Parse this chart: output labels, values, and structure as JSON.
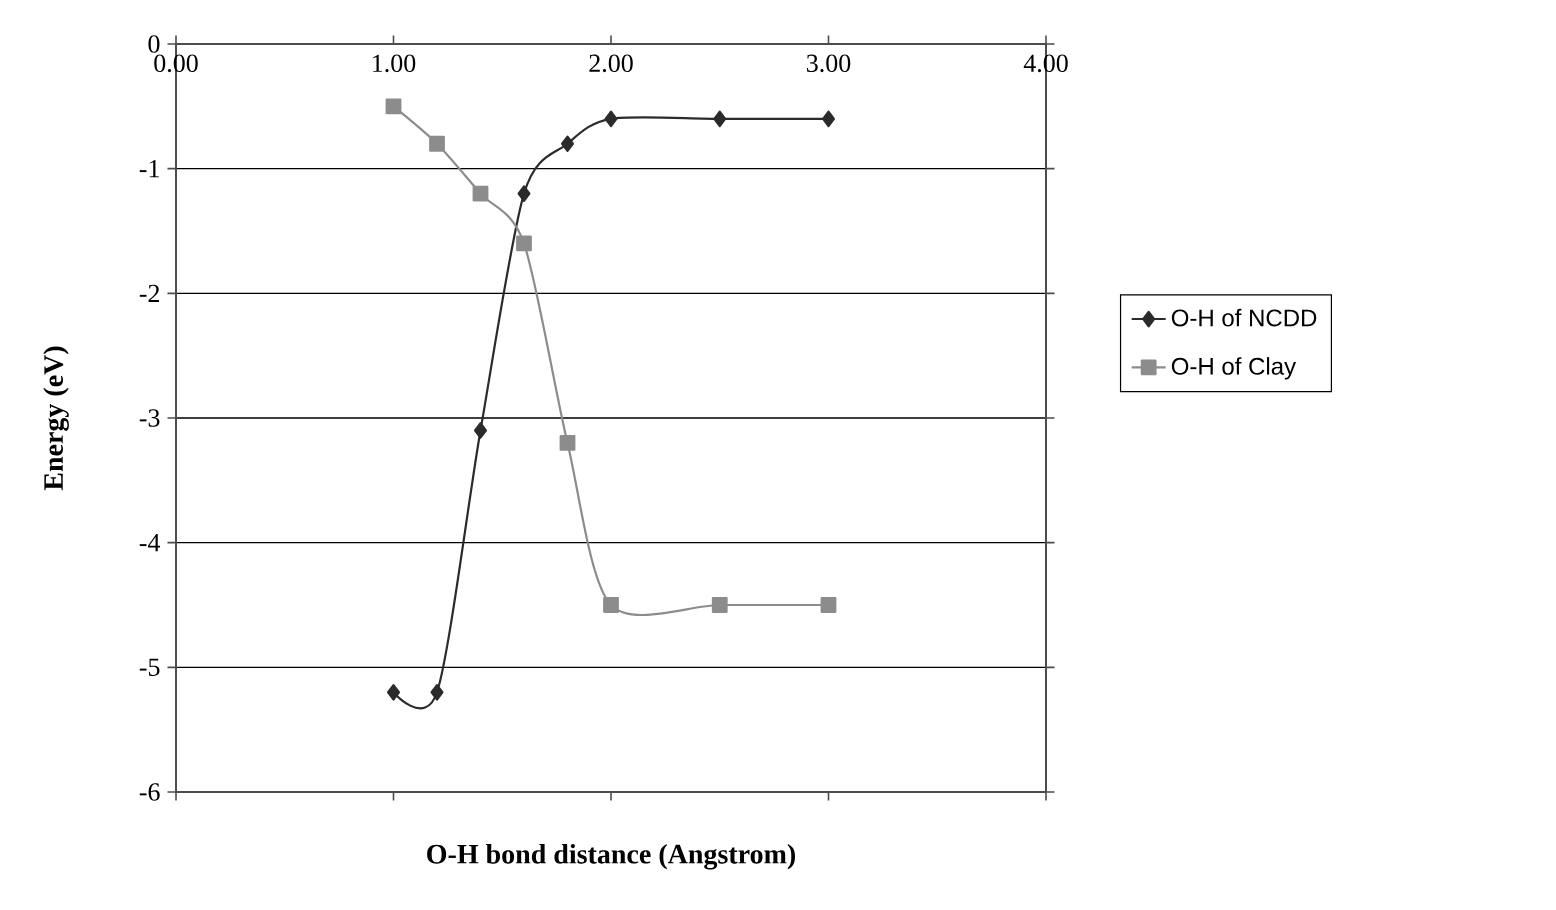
{
  "chart_data": {
    "type": "line",
    "xlabel": "O-H bond distance (Angstrom)",
    "ylabel": "Energy (eV)",
    "xlim": [
      0,
      4
    ],
    "xticks": [
      {
        "value": 0,
        "label": "0.00"
      },
      {
        "value": 1,
        "label": "1.00"
      },
      {
        "value": 2,
        "label": "2.00"
      },
      {
        "value": 3,
        "label": "3.00"
      },
      {
        "value": 4,
        "label": "4.00"
      }
    ],
    "ylim": [
      -6,
      0
    ],
    "yticks": [
      -6,
      -5,
      -4,
      -3,
      -2,
      -1,
      0
    ],
    "grid": "y",
    "legend": "right",
    "series": [
      {
        "name": "O-H of NCDD",
        "color": "#2b2b2b",
        "marker": "diamond",
        "x": [
          1.0,
          1.2,
          1.4,
          1.6,
          1.8,
          2.0,
          2.5,
          3.0
        ],
        "values": [
          -5.2,
          -5.2,
          -3.1,
          -1.2,
          -0.8,
          -0.6,
          -0.6,
          -0.6
        ]
      },
      {
        "name": "O-H of Clay",
        "color": "#8c8c8c",
        "marker": "square",
        "x": [
          1.0,
          1.2,
          1.4,
          1.6,
          1.8,
          2.0,
          2.5,
          3.0
        ],
        "values": [
          -0.5,
          -0.8,
          -1.2,
          -1.6,
          -3.2,
          -4.5,
          -4.5,
          -4.5
        ]
      }
    ]
  }
}
